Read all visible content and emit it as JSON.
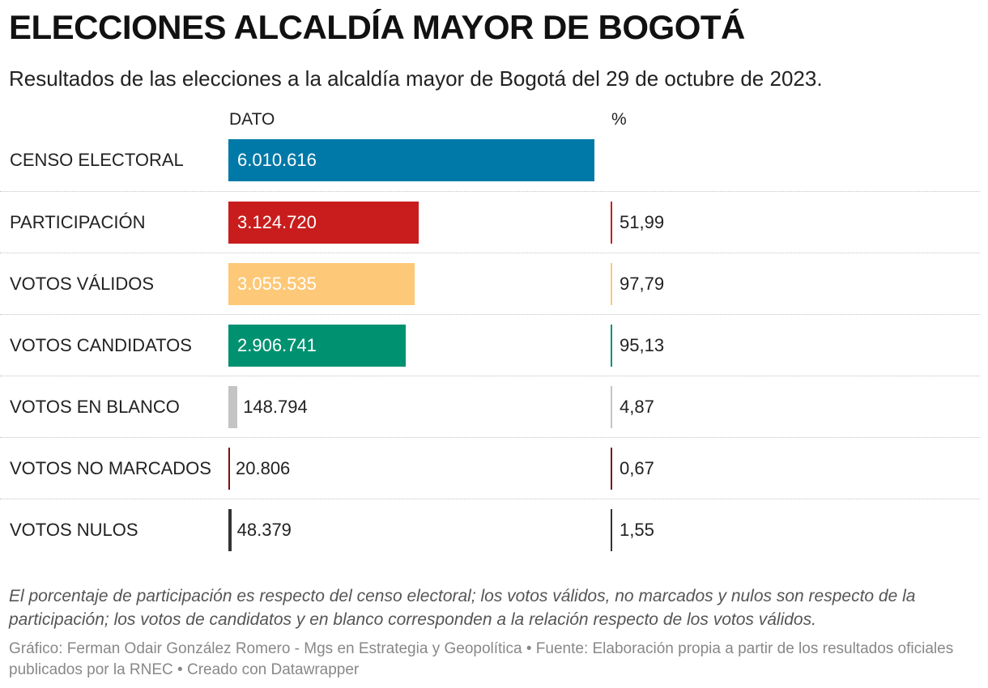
{
  "title": "ELECCIONES ALCALDÍA MAYOR DE BOGOTÁ",
  "subtitle": "Resultados de las elecciones a la alcaldía mayor de Bogotá del 29 de octubre de 2023.",
  "columns": {
    "dato": "DATO",
    "pct": "%"
  },
  "note": "El porcentaje de participación es respecto del censo electoral; los votos válidos, no marcados y nulos son respecto de la participación; los votos de candidatos y en blanco corresponden a la relación respecto de los votos válidos.",
  "credit": "Gráfico: Ferman Odair González Romero - Mgs en Estrategia y Geopolítica • Fuente: Elaboración propia a partir de los resultados oficiales publicados por la RNEC • Creado con Datawrapper",
  "chart_data": {
    "type": "table",
    "columns": [
      "DATO",
      "%"
    ],
    "rows": [
      {
        "label": "CENSO ELECTORAL",
        "value": 6010616,
        "value_label": "6.010.616",
        "pct": null,
        "pct_label": "",
        "color": "#0079a8"
      },
      {
        "label": "PARTICIPACIÓN",
        "value": 3124720,
        "value_label": "3.124.720",
        "pct": 51.99,
        "pct_label": "51,99",
        "color": "#c91d1d"
      },
      {
        "label": "VOTOS VÁLIDOS",
        "value": 3055535,
        "value_label": "3.055.535",
        "pct": 97.79,
        "pct_label": "97,79",
        "color": "#fdc877"
      },
      {
        "label": "VOTOS CANDIDATOS",
        "value": 2906741,
        "value_label": "2.906.741",
        "pct": 95.13,
        "pct_label": "95,13",
        "color": "#009170"
      },
      {
        "label": "VOTOS EN BLANCO",
        "value": 148794,
        "value_label": "148.794",
        "pct": 4.87,
        "pct_label": "4,87",
        "color": "#c4c4c4"
      },
      {
        "label": "VOTOS NO MARCADOS",
        "value": 20806,
        "value_label": "20.806",
        "pct": 0.67,
        "pct_label": "0,67",
        "color": "#7a1113"
      },
      {
        "label": "VOTOS NULOS",
        "value": 48379,
        "value_label": "48.379",
        "pct": 1.55,
        "pct_label": "1,55",
        "color": "#333333"
      }
    ],
    "value_max": 6010616
  }
}
